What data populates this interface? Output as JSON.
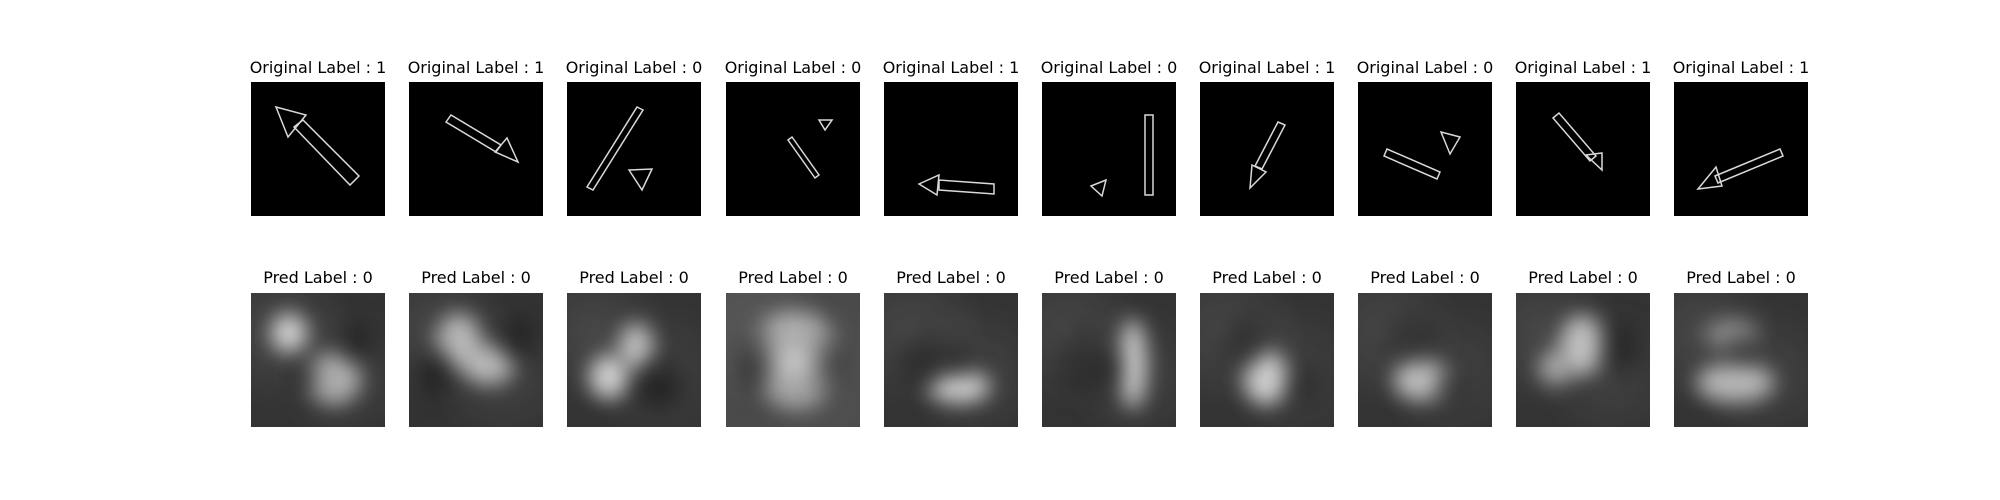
{
  "top_labels": [
    "Original Label : 1",
    "Original Label : 1",
    "Original Label : 0",
    "Original Label : 0",
    "Original Label : 1",
    "Original Label : 0",
    "Original Label : 1",
    "Original Label : 0",
    "Original Label : 1",
    "Original Label : 1"
  ],
  "bottom_labels": [
    "Pred Label : 0",
    "Pred Label : 0",
    "Pred Label : 0",
    "Pred Label : 0",
    "Pred Label : 0",
    "Pred Label : 0",
    "Pred Label : 0",
    "Pred Label : 0",
    "Pred Label : 0",
    "Pred Label : 0"
  ]
}
